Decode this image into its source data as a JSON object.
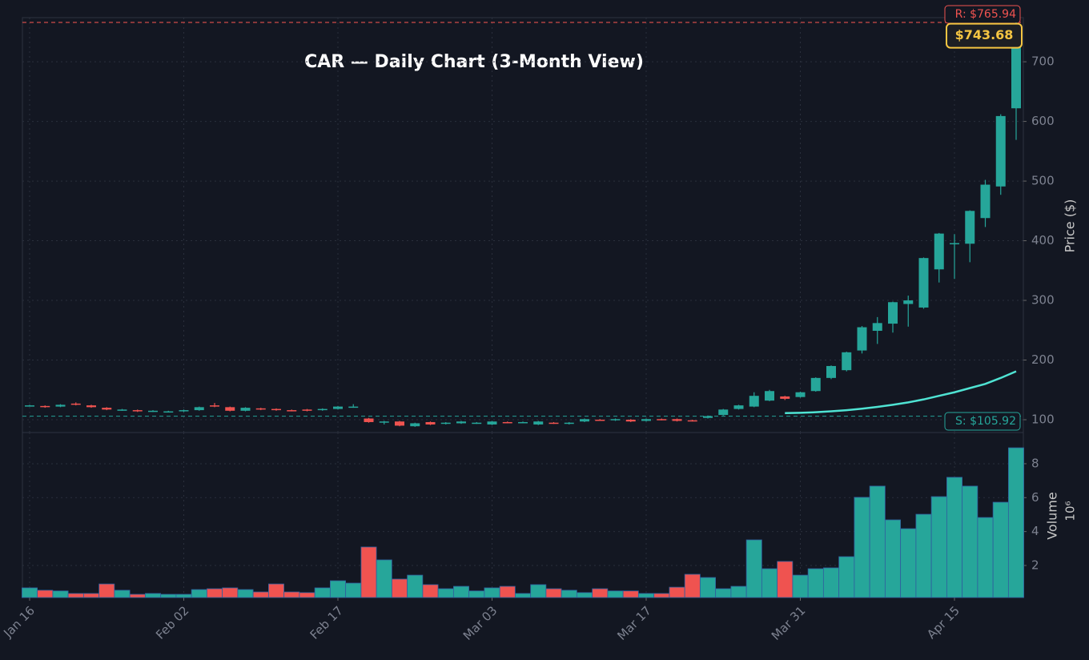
{
  "chart_data": {
    "type": "candlestick",
    "title": "CAR — Daily Chart (3-Month View)",
    "categories": [
      "Jan 16",
      null,
      null,
      null,
      null,
      null,
      null,
      null,
      null,
      null,
      "Feb 02",
      null,
      null,
      null,
      null,
      null,
      null,
      null,
      null,
      null,
      "Feb 17",
      null,
      null,
      null,
      null,
      null,
      null,
      null,
      null,
      null,
      "Mar 03",
      null,
      null,
      null,
      null,
      null,
      null,
      null,
      null,
      null,
      "Mar 17",
      null,
      null,
      null,
      null,
      null,
      null,
      null,
      null,
      null,
      "Mar 31",
      null,
      null,
      null,
      null,
      null,
      null,
      null,
      null,
      null,
      "Apr 15",
      null,
      null,
      null,
      null
    ],
    "open": [
      123,
      123,
      122,
      127,
      124,
      120,
      116,
      116,
      114,
      114,
      114,
      116,
      124,
      121,
      115,
      119,
      118,
      116,
      117,
      116,
      118,
      121,
      102,
      96,
      97,
      89,
      96,
      93,
      94,
      94,
      92,
      96,
      95,
      92,
      95,
      93,
      97,
      100,
      99,
      100,
      98,
      101,
      101,
      99,
      103,
      108,
      118,
      122,
      132,
      139,
      138,
      148,
      170,
      183,
      216,
      249,
      261,
      294,
      288,
      352,
      394,
      395,
      438,
      491,
      622
    ],
    "high": [
      125,
      124,
      126,
      129,
      125,
      121,
      118,
      117,
      116,
      115,
      117,
      122,
      128,
      122,
      121,
      120,
      119,
      117,
      118,
      119,
      123,
      126,
      103,
      98,
      98,
      95,
      97,
      96,
      98,
      96,
      98,
      97,
      97,
      98,
      96,
      96,
      102,
      101,
      102,
      101,
      102,
      102,
      102,
      100,
      107,
      118,
      125,
      146,
      150,
      140,
      147,
      171,
      191,
      214,
      257,
      272,
      298,
      308,
      372,
      413,
      411,
      451,
      502,
      612,
      765.94
    ],
    "low": [
      122,
      120,
      121,
      124,
      120,
      116,
      115,
      113,
      113,
      113,
      113,
      115,
      121,
      114,
      114,
      116,
      115,
      114,
      114,
      115,
      117,
      120,
      95,
      92,
      89,
      88,
      91,
      92,
      93,
      93,
      91,
      94,
      94,
      91,
      93,
      92,
      96,
      98,
      98,
      96,
      97,
      99,
      97,
      97,
      102,
      107,
      117,
      121,
      131,
      133,
      137,
      147,
      168,
      181,
      211,
      227,
      246,
      256,
      286,
      330,
      336,
      364,
      423,
      477,
      569
    ],
    "close": [
      124,
      121,
      125,
      125,
      121,
      117,
      117,
      114,
      115,
      114,
      116,
      121,
      122,
      115,
      120,
      117,
      116,
      115,
      115,
      118,
      122,
      122,
      96,
      97,
      90,
      94,
      92,
      95,
      97,
      95,
      97,
      95,
      96,
      97,
      94,
      95,
      101,
      99,
      101,
      97,
      101,
      100,
      98,
      98,
      106,
      117,
      124,
      140,
      148,
      135,
      146,
      170,
      190,
      213,
      255,
      262,
      297,
      300,
      371,
      412,
      396,
      450,
      494,
      609,
      743.68
    ],
    "moving_average": [
      null,
      null,
      null,
      null,
      null,
      null,
      null,
      null,
      null,
      null,
      null,
      null,
      null,
      null,
      null,
      null,
      null,
      null,
      null,
      null,
      null,
      null,
      null,
      null,
      null,
      null,
      null,
      null,
      null,
      null,
      null,
      null,
      null,
      null,
      null,
      null,
      null,
      null,
      null,
      null,
      null,
      null,
      null,
      null,
      null,
      null,
      null,
      null,
      null,
      111,
      111.5,
      112.5,
      114,
      116,
      118.5,
      121.5,
      125,
      129,
      134,
      140,
      146,
      153,
      160,
      170,
      181
    ],
    "volume": [
      0.68,
      0.54,
      0.5,
      0.35,
      0.35,
      0.91,
      0.54,
      0.3,
      0.35,
      0.3,
      0.3,
      0.58,
      0.63,
      0.68,
      0.58,
      0.44,
      0.91,
      0.44,
      0.4,
      0.68,
      1.1,
      0.96,
      3.09,
      2.33,
      1.2,
      1.43,
      0.87,
      0.63,
      0.77,
      0.5,
      0.68,
      0.77,
      0.35,
      0.87,
      0.63,
      0.54,
      0.4,
      0.63,
      0.5,
      0.5,
      0.35,
      0.35,
      0.72,
      1.48,
      1.29,
      0.63,
      0.77,
      3.51,
      1.81,
      2.24,
      1.43,
      1.81,
      1.86,
      2.52,
      6.02,
      6.68,
      4.69,
      4.17,
      5.02,
      6.06,
      7.2,
      6.68,
      4.83,
      5.73,
      8.94
    ],
    "up_color": "#26a69a",
    "down_color": "#ef5350",
    "ma_color": "#4fe3d3",
    "ylim": [
      78.5,
      774
    ],
    "yticks": [
      100,
      200,
      300,
      400,
      500,
      600,
      700
    ],
    "ylabel": "Price ($)",
    "volume_ylim": [
      0.11,
      9.84
    ],
    "volume_yticks": [
      2,
      4,
      6,
      8
    ],
    "volume_label": "Volume",
    "volume_unit": "10⁶",
    "resistance": {
      "value": 765.94,
      "label": "R: $765.94"
    },
    "support": {
      "value": 105.92,
      "label": "S: $105.92"
    },
    "last_price": {
      "value": 743.68,
      "label": "$743.68"
    },
    "grid": true
  }
}
